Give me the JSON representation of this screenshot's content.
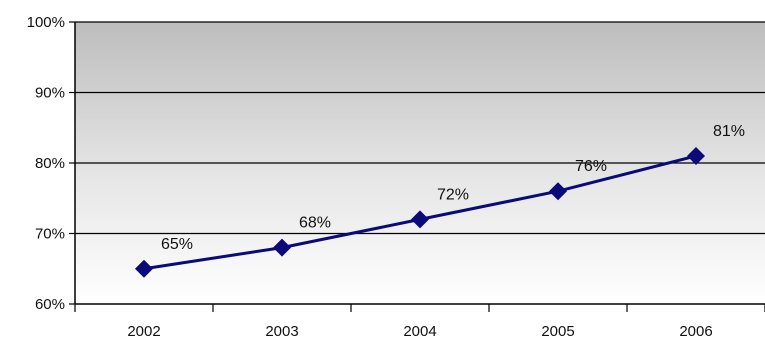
{
  "chart_data": {
    "type": "line",
    "title": "",
    "xlabel": "",
    "ylabel": "",
    "categories": [
      "2002",
      "2003",
      "2004",
      "2005",
      "2006"
    ],
    "series": [
      {
        "values": [
          65,
          68,
          72,
          76,
          81
        ],
        "data_labels": [
          "65%",
          "68%",
          "72%",
          "76%",
          "81%"
        ],
        "color": "#0a0a78",
        "marker": "diamond"
      }
    ],
    "ylim": [
      60,
      100
    ],
    "y_ticks": [
      60,
      70,
      80,
      90,
      100
    ],
    "y_tick_labels": [
      "60%",
      "70%",
      "80%",
      "90%",
      "100%"
    ],
    "grid": true,
    "legend": "none",
    "plot_background": "gradient-gray-to-white",
    "colors": {
      "plot_top": "#bdbdbd",
      "plot_bottom": "#ffffff",
      "gridline": "#000000",
      "axis": "#000000"
    }
  }
}
